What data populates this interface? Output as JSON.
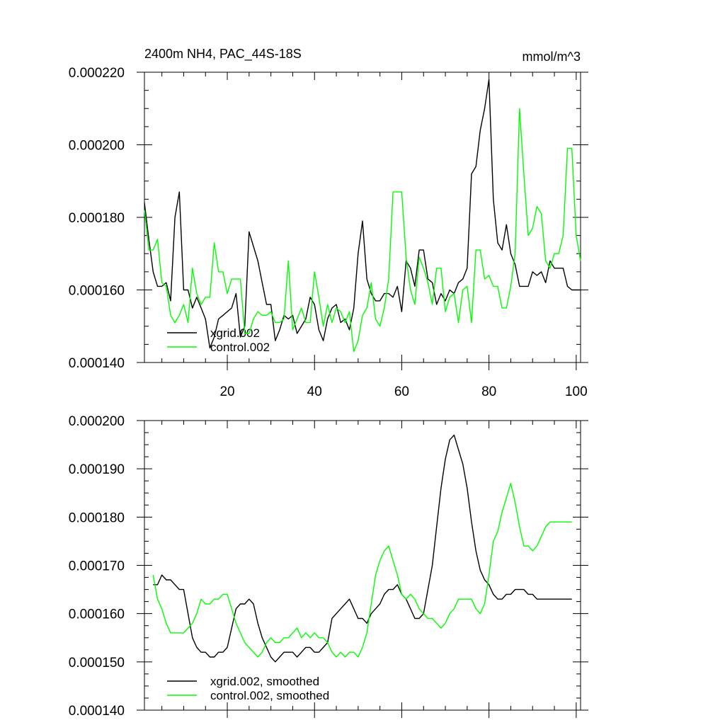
{
  "chart_data": [
    {
      "type": "line",
      "title": "2400m NH4, PAC_44S-18S",
      "units": "mmol/m^3",
      "xlim": [
        1,
        101
      ],
      "ylim": [
        0.00014,
        0.00022
      ],
      "xticks": [
        20,
        40,
        60,
        80,
        100
      ],
      "xtick_labels": [
        "20",
        "40",
        "60",
        "80",
        "100"
      ],
      "yticks": [
        0.00014,
        0.00016,
        0.00018,
        0.0002,
        0.00022
      ],
      "ytick_labels": [
        "0.000140",
        "0.000160",
        "0.000180",
        "0.000200",
        "0.000220"
      ],
      "legend_position": "bottom-left",
      "series": [
        {
          "name": "xgrid.002",
          "color": "#000000",
          "x": [
            1,
            2,
            3,
            4,
            5,
            6,
            7,
            8,
            9,
            10,
            11,
            12,
            13,
            14,
            15,
            16,
            17,
            18,
            19,
            20,
            21,
            22,
            23,
            24,
            25,
            26,
            27,
            28,
            29,
            30,
            31,
            32,
            33,
            34,
            35,
            36,
            37,
            38,
            39,
            40,
            41,
            42,
            43,
            44,
            45,
            46,
            47,
            48,
            49,
            50,
            51,
            52,
            53,
            54,
            55,
            56,
            57,
            58,
            59,
            60,
            61,
            62,
            63,
            64,
            65,
            66,
            67,
            68,
            69,
            70,
            71,
            72,
            73,
            74,
            75,
            76,
            77,
            78,
            79,
            80,
            81,
            82,
            83,
            84,
            85,
            86,
            87,
            88,
            89,
            90,
            91,
            92,
            93,
            94,
            95,
            96,
            97,
            98,
            99,
            100,
            101
          ],
          "values": [
            0.000184,
            0.000174,
            0.000165,
            0.000161,
            0.000161,
            0.000162,
            0.000157,
            0.00018,
            0.000187,
            0.00016,
            0.00016,
            0.000155,
            0.000158,
            0.000155,
            0.000152,
            0.000144,
            0.000147,
            0.000152,
            0.000153,
            0.000154,
            0.000155,
            0.000159,
            0.000147,
            0.00015,
            0.000176,
            0.000172,
            0.000168,
            0.000162,
            0.000156,
            0.000156,
            0.000146,
            0.000149,
            0.000153,
            0.000152,
            0.000153,
            0.000148,
            0.00015,
            0.000152,
            0.000158,
            0.000156,
            0.000149,
            0.000146,
            0.000152,
            0.000155,
            0.000156,
            0.000151,
            0.000152,
            0.000149,
            0.000155,
            0.00017,
            0.000179,
            0.000163,
            0.000159,
            0.000157,
            0.000157,
            0.000159,
            0.000159,
            0.000158,
            0.000161,
            0.000154,
            0.000168,
            0.000166,
            0.000161,
            0.000171,
            0.000171,
            0.000163,
            0.000162,
            0.000156,
            0.000159,
            0.000157,
            0.00016,
            0.000159,
            0.000162,
            0.000163,
            0.000166,
            0.000192,
            0.000194,
            0.000204,
            0.00021,
            0.000218,
            0.000185,
            0.000173,
            0.000171,
            0.000178,
            0.00017,
            0.000167,
            0.000161,
            0.000161,
            0.000161,
            0.000165,
            0.000164,
            0.000165,
            0.000162,
            0.000168,
            0.000166,
            0.000166,
            0.000166,
            0.000161,
            0.00016,
            0.00016,
            0.00016
          ]
        },
        {
          "name": "control.002",
          "color": "#00ff00",
          "x": [
            1,
            2,
            3,
            4,
            5,
            6,
            7,
            8,
            9,
            10,
            11,
            12,
            13,
            14,
            15,
            16,
            17,
            18,
            19,
            20,
            21,
            22,
            23,
            24,
            25,
            26,
            27,
            28,
            29,
            30,
            31,
            32,
            33,
            34,
            35,
            36,
            37,
            38,
            39,
            40,
            41,
            42,
            43,
            44,
            45,
            46,
            47,
            48,
            49,
            50,
            51,
            52,
            53,
            54,
            55,
            56,
            57,
            58,
            59,
            60,
            61,
            62,
            63,
            64,
            65,
            66,
            67,
            68,
            69,
            70,
            71,
            72,
            73,
            74,
            75,
            76,
            77,
            78,
            79,
            80,
            81,
            82,
            83,
            84,
            85,
            86,
            87,
            88,
            89,
            90,
            91,
            92,
            93,
            94,
            95,
            96,
            97,
            98,
            99,
            100,
            101
          ],
          "values": [
            0.000182,
            0.000171,
            0.000171,
            0.000174,
            0.000162,
            0.000161,
            0.000153,
            0.000151,
            0.000153,
            0.000156,
            0.000151,
            0.000166,
            0.000159,
            0.000156,
            0.000158,
            0.000158,
            0.000173,
            0.000165,
            0.000165,
            0.000159,
            0.000163,
            0.000163,
            0.000163,
            0.000148,
            0.000148,
            0.000152,
            0.000154,
            0.000153,
            0.000153,
            0.000154,
            0.000151,
            0.000151,
            0.000152,
            0.000168,
            0.000149,
            0.000152,
            0.000155,
            0.000151,
            0.000151,
            0.000165,
            0.000158,
            0.00015,
            0.000156,
            0.000151,
            0.000155,
            0.000154,
            0.000151,
            0.000154,
            0.000143,
            0.000146,
            0.000153,
            0.000155,
            0.000162,
            0.000152,
            0.00015,
            0.000155,
            0.000163,
            0.000187,
            0.000187,
            0.000187,
            0.000169,
            0.00016,
            0.000156,
            0.000169,
            0.000166,
            0.000162,
            0.000156,
            0.000166,
            0.000166,
            0.000154,
            0.000158,
            0.000159,
            0.000151,
            0.00016,
            0.000161,
            0.000151,
            0.000171,
            0.000171,
            0.000163,
            0.000164,
            0.000161,
            0.000161,
            0.000155,
            0.000155,
            0.000161,
            0.00017,
            0.00021,
            0.000192,
            0.000175,
            0.000177,
            0.000183,
            0.000181,
            0.000168,
            0.000166,
            0.00017,
            0.00017,
            0.000175,
            0.000199,
            0.000199,
            0.000175,
            0.000168
          ]
        }
      ]
    },
    {
      "type": "line",
      "title": "",
      "xlim": [
        1,
        101
      ],
      "ylim": [
        0.00014,
        0.0002
      ],
      "xticks": [
        20,
        40,
        60,
        80,
        100
      ],
      "yticks": [
        0.00014,
        0.00015,
        0.00016,
        0.00017,
        0.00018,
        0.00019,
        0.0002
      ],
      "ytick_labels": [
        "0.000140",
        "0.000150",
        "0.000160",
        "0.000170",
        "0.000180",
        "0.000190",
        "0.000200"
      ],
      "legend_position": "bottom-left",
      "series": [
        {
          "name": "xgrid.002, smoothed",
          "color": "#000000",
          "x": [
            3,
            4,
            5,
            6,
            7,
            8,
            9,
            10,
            11,
            12,
            13,
            14,
            15,
            16,
            17,
            18,
            19,
            20,
            21,
            22,
            23,
            24,
            25,
            26,
            27,
            28,
            29,
            30,
            31,
            32,
            33,
            34,
            35,
            36,
            37,
            38,
            39,
            40,
            41,
            42,
            43,
            44,
            45,
            46,
            47,
            48,
            49,
            50,
            51,
            52,
            53,
            54,
            55,
            56,
            57,
            58,
            59,
            60,
            61,
            62,
            63,
            64,
            65,
            66,
            67,
            68,
            69,
            70,
            71,
            72,
            73,
            74,
            75,
            76,
            77,
            78,
            79,
            80,
            81,
            82,
            83,
            84,
            85,
            86,
            87,
            88,
            89,
            90,
            91,
            92,
            93,
            94,
            95,
            96,
            97,
            98,
            99
          ],
          "values": [
            0.000166,
            0.000166,
            0.000168,
            0.000167,
            0.000167,
            0.000166,
            0.000165,
            0.000165,
            0.00016,
            0.000155,
            0.000153,
            0.000152,
            0.000152,
            0.000151,
            0.000151,
            0.000152,
            0.000152,
            0.000153,
            0.000157,
            0.000161,
            0.000162,
            0.000162,
            0.000163,
            0.000162,
            0.000158,
            0.000155,
            0.000153,
            0.000151,
            0.00015,
            0.000151,
            0.000152,
            0.000152,
            0.000152,
            0.000151,
            0.000152,
            0.000153,
            0.000153,
            0.000152,
            0.000152,
            0.000153,
            0.000154,
            0.000159,
            0.00016,
            0.000161,
            0.000162,
            0.000163,
            0.000161,
            0.000159,
            0.000159,
            0.000158,
            0.00016,
            0.000161,
            0.000162,
            0.000164,
            0.000165,
            0.000165,
            0.000166,
            0.000164,
            0.000163,
            0.000161,
            0.000159,
            0.000159,
            0.00016,
            0.000165,
            0.00017,
            0.000178,
            0.000186,
            0.000192,
            0.000196,
            0.000197,
            0.000194,
            0.000191,
            0.000186,
            0.000179,
            0.000173,
            0.000169,
            0.000167,
            0.000166,
            0.000164,
            0.000163,
            0.000163,
            0.000164,
            0.000164,
            0.000165,
            0.000165,
            0.000165,
            0.000164,
            0.000164,
            0.000163,
            0.000163,
            0.000163,
            0.000163,
            0.000163,
            0.000163,
            0.000163,
            0.000163,
            0.000163
          ]
        },
        {
          "name": "control.002, smoothed",
          "color": "#00ff00",
          "x": [
            3,
            4,
            5,
            6,
            7,
            8,
            9,
            10,
            11,
            12,
            13,
            14,
            15,
            16,
            17,
            18,
            19,
            20,
            21,
            22,
            23,
            24,
            25,
            26,
            27,
            28,
            29,
            30,
            31,
            32,
            33,
            34,
            35,
            36,
            37,
            38,
            39,
            40,
            41,
            42,
            43,
            44,
            45,
            46,
            47,
            48,
            49,
            50,
            51,
            52,
            53,
            54,
            55,
            56,
            57,
            58,
            59,
            60,
            61,
            62,
            63,
            64,
            65,
            66,
            67,
            68,
            69,
            70,
            71,
            72,
            73,
            74,
            75,
            76,
            77,
            78,
            79,
            80,
            81,
            82,
            83,
            84,
            85,
            86,
            87,
            88,
            89,
            90,
            91,
            92,
            93,
            94,
            95,
            96,
            97,
            98,
            99
          ],
          "values": [
            0.000168,
            0.000163,
            0.000161,
            0.000158,
            0.000156,
            0.000156,
            0.000156,
            0.000156,
            0.000157,
            0.000158,
            0.00016,
            0.000163,
            0.000162,
            0.000162,
            0.000163,
            0.000163,
            0.000164,
            0.000164,
            0.000161,
            0.000158,
            0.000156,
            0.000154,
            0.000153,
            0.000152,
            0.000151,
            0.000152,
            0.000154,
            0.000155,
            0.000154,
            0.000154,
            0.000155,
            0.000155,
            0.000156,
            0.000157,
            0.000155,
            0.000156,
            0.000155,
            0.000156,
            0.000155,
            0.000155,
            0.000154,
            0.000152,
            0.000151,
            0.000152,
            0.000151,
            0.000152,
            0.000152,
            0.000151,
            0.000153,
            0.000156,
            0.000162,
            0.000168,
            0.000171,
            0.000173,
            0.000174,
            0.000171,
            0.000168,
            0.000164,
            0.000163,
            0.000164,
            0.000163,
            0.000161,
            0.00016,
            0.000159,
            0.000159,
            0.000158,
            0.000157,
            0.000158,
            0.00016,
            0.000161,
            0.000163,
            0.000163,
            0.000163,
            0.000163,
            0.000161,
            0.00016,
            0.000162,
            0.000168,
            0.000175,
            0.000177,
            0.000181,
            0.000184,
            0.000187,
            0.000183,
            0.000178,
            0.000174,
            0.000174,
            0.000173,
            0.000174,
            0.000176,
            0.000178,
            0.000179,
            0.000179,
            0.000179,
            0.000179,
            0.000179,
            0.000179
          ]
        }
      ]
    }
  ]
}
